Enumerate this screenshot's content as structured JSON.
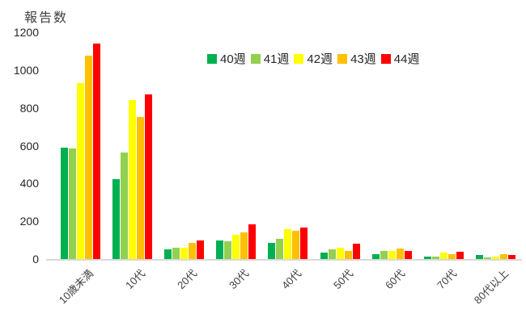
{
  "chart_data": {
    "type": "bar",
    "title": "",
    "ylabel": "報告数",
    "xlabel": "",
    "categories": [
      "10歳未満",
      "10代",
      "20代",
      "30代",
      "40代",
      "50代",
      "60代",
      "70代",
      "80代以上"
    ],
    "series": [
      {
        "name": "40週",
        "color": "#00B050",
        "values": [
          590,
          425,
          50,
          100,
          85,
          35,
          25,
          15,
          20
        ]
      },
      {
        "name": "41週",
        "color": "#92D050",
        "values": [
          585,
          565,
          60,
          95,
          105,
          50,
          45,
          15,
          10
        ]
      },
      {
        "name": "42週",
        "color": "#FFFF00",
        "values": [
          930,
          840,
          60,
          130,
          160,
          60,
          45,
          35,
          15
        ]
      },
      {
        "name": "43週",
        "color": "#FFC000",
        "values": [
          1075,
          750,
          85,
          140,
          150,
          45,
          55,
          25,
          25
        ]
      },
      {
        "name": "44週",
        "color": "#FF0000",
        "values": [
          1140,
          870,
          100,
          185,
          165,
          80,
          45,
          40,
          20
        ]
      }
    ],
    "ylim": [
      0,
      1200
    ],
    "yticks": [
      0,
      200,
      400,
      600,
      800,
      1000,
      1200
    ],
    "legend_position": "top",
    "grid": false,
    "axis_color": "#d9d9d9"
  }
}
